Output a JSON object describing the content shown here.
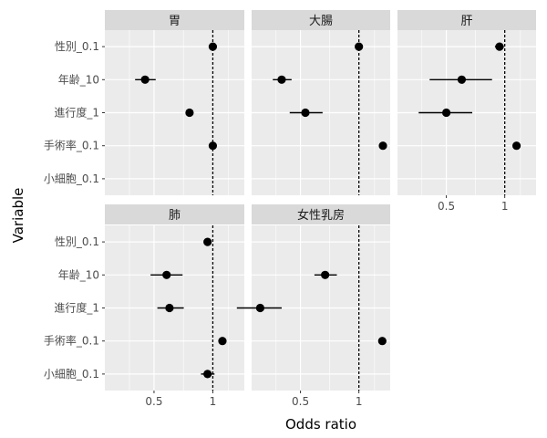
{
  "chart_data": {
    "type": "scatter",
    "variant": "faceted forest plot",
    "xlabel": "Odds ratio",
    "ylabel": "Variable",
    "x_scale": "log",
    "reference_line": 1,
    "x_ticks": [
      0.5,
      1
    ],
    "x_tick_labels": [
      "0.5",
      "1"
    ],
    "xlim": [
      0.28,
      1.45
    ],
    "variables": [
      "性別_0.1",
      "年齢_10",
      "進行度_1",
      "手術率_0.1",
      "小細胞_0.1"
    ],
    "facets": [
      {
        "name": "胃",
        "points": [
          {
            "variable": "性別_0.1",
            "or": 1.0,
            "low": 0.98,
            "high": 1.02
          },
          {
            "variable": "年齢_10",
            "or": 0.45,
            "low": 0.4,
            "high": 0.51
          },
          {
            "variable": "進行度_1",
            "or": 0.76,
            "low": 0.74,
            "high": 0.78
          },
          {
            "variable": "手術率_0.1",
            "or": 1.0,
            "low": 0.97,
            "high": 1.03
          }
        ]
      },
      {
        "name": "大腸",
        "points": [
          {
            "variable": "性別_0.1",
            "or": 1.0,
            "low": 0.97,
            "high": 1.03
          },
          {
            "variable": "年齢_10",
            "or": 0.4,
            "low": 0.36,
            "high": 0.45
          },
          {
            "variable": "進行度_1",
            "or": 0.53,
            "low": 0.44,
            "high": 0.65
          },
          {
            "variable": "手術率_0.1",
            "or": 1.33,
            "low": 1.31,
            "high": 1.35
          }
        ]
      },
      {
        "name": "肝",
        "points": [
          {
            "variable": "性別_0.1",
            "or": 0.94,
            "low": 0.89,
            "high": 0.99
          },
          {
            "variable": "年齢_10",
            "or": 0.6,
            "low": 0.41,
            "high": 0.86
          },
          {
            "variable": "進行度_1",
            "or": 0.5,
            "low": 0.36,
            "high": 0.68
          },
          {
            "variable": "手術率_0.1",
            "or": 1.15,
            "low": 1.12,
            "high": 1.18
          }
        ]
      },
      {
        "name": "肺",
        "points": [
          {
            "variable": "性別_0.1",
            "or": 0.94,
            "low": 0.91,
            "high": 0.98
          },
          {
            "variable": "年齢_10",
            "or": 0.58,
            "low": 0.48,
            "high": 0.7
          },
          {
            "variable": "進行度_1",
            "or": 0.6,
            "low": 0.52,
            "high": 0.71
          },
          {
            "variable": "手術率_0.1",
            "or": 1.12,
            "low": 1.09,
            "high": 1.16
          },
          {
            "variable": "小細胞_0.1",
            "or": 0.94,
            "low": 0.87,
            "high": 1.02
          }
        ]
      },
      {
        "name": "女性乳房",
        "points": [
          {
            "variable": "年齢_10",
            "or": 0.67,
            "low": 0.59,
            "high": 0.77
          },
          {
            "variable": "進行度_1",
            "or": 0.31,
            "low": 0.235,
            "high": 0.4
          },
          {
            "variable": "手術率_0.1",
            "or": 1.32,
            "low": 1.28,
            "high": 1.36
          }
        ]
      }
    ]
  },
  "colors": {
    "panel_background": "#ebebeb",
    "strip_background": "#d9d9d9",
    "grid_major": "#ffffff",
    "point": "#000000",
    "reference_line": "#000000"
  }
}
